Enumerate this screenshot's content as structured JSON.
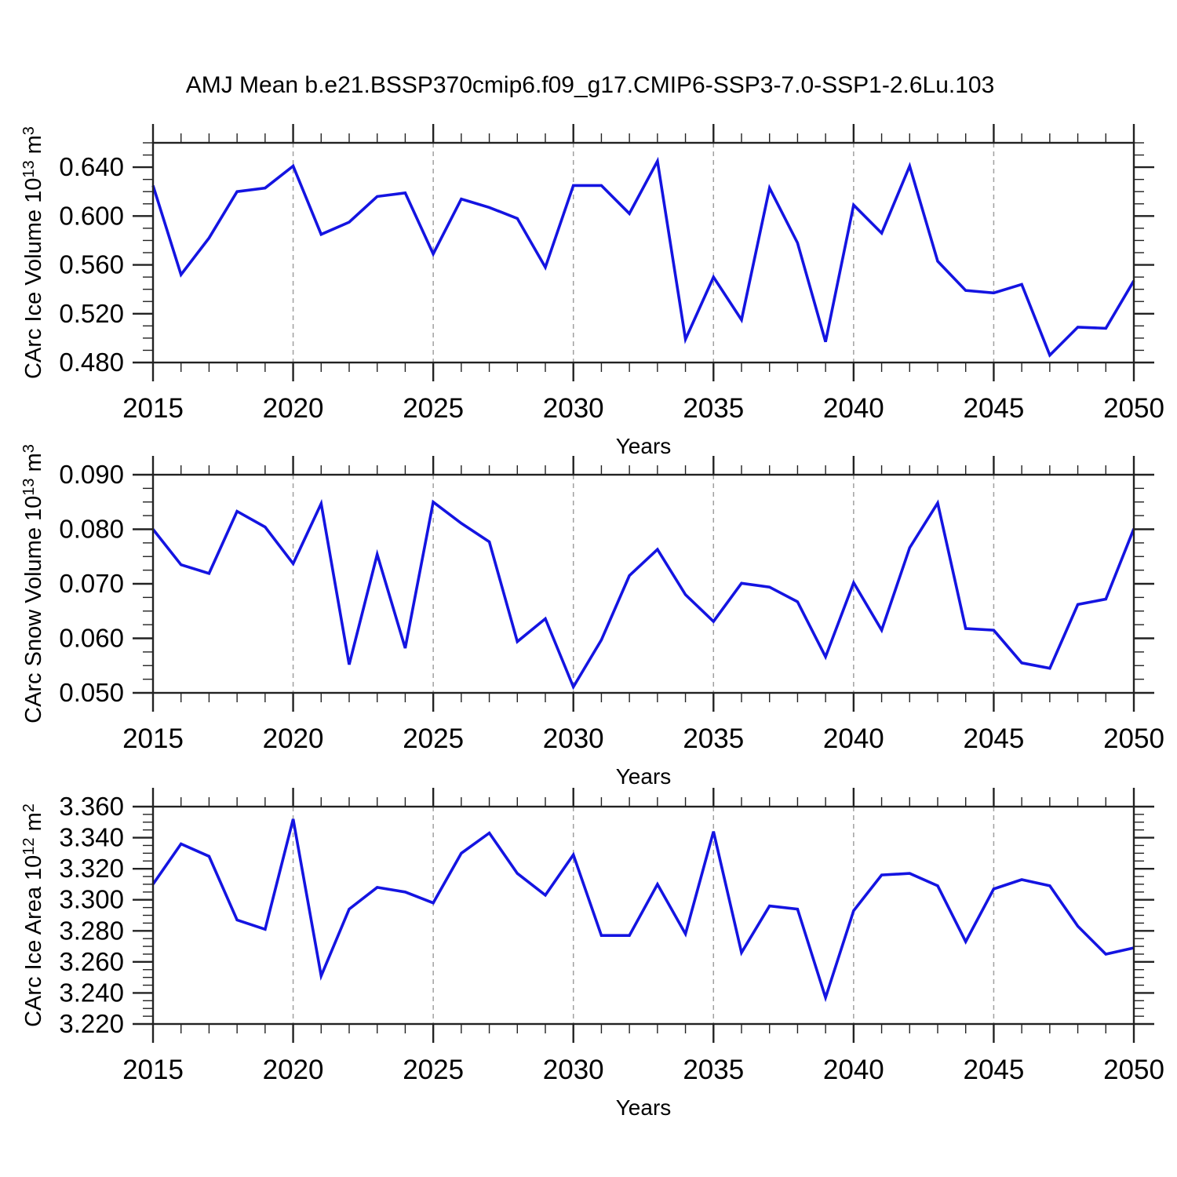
{
  "title": "AMJ Mean b.e21.BSSP370cmip6.f09_g17.CMIP6-SSP3-7.0-SSP1-2.6Lu.103",
  "style": {
    "line_color": "#1414e1",
    "grid_color": "#a0a0a0",
    "axis_color": "#222222",
    "text_color": "#000000",
    "background": "#ffffff"
  },
  "x_axis": {
    "label": "Years",
    "min": 2015,
    "max": 2050,
    "major_tick_step": 5,
    "minor_tick_step": 1,
    "tick_labels": [
      "2015",
      "2020",
      "2025",
      "2030",
      "2035",
      "2040",
      "2045",
      "2050"
    ],
    "grid_years": [
      2020,
      2025,
      2030,
      2035,
      2040,
      2045
    ]
  },
  "chart_data": [
    {
      "type": "line",
      "title": "",
      "ylabel": "CArc Ice Volume 10^13 m^3",
      "ylabel_parts": {
        "text": "CArc Ice Volume 10",
        "exponent": "13",
        "unit": " m",
        "unit_exponent": "3"
      },
      "xlabel": "Years",
      "legend": "none",
      "grid": "vertical-dashed",
      "ylim": [
        0.48,
        0.66
      ],
      "y_minor_step": 0.01,
      "yticks": [
        0.48,
        0.52,
        0.56,
        0.6,
        0.64
      ],
      "ytick_labels": [
        "0.480",
        "0.520",
        "0.560",
        "0.600",
        "0.640"
      ],
      "x": [
        2015,
        2016,
        2017,
        2018,
        2019,
        2020,
        2021,
        2022,
        2023,
        2024,
        2025,
        2026,
        2027,
        2028,
        2029,
        2030,
        2031,
        2032,
        2033,
        2034,
        2035,
        2036,
        2037,
        2038,
        2039,
        2040,
        2041,
        2042,
        2043,
        2044,
        2045,
        2046,
        2047,
        2048,
        2049,
        2050
      ],
      "values": [
        0.625,
        0.552,
        0.582,
        0.62,
        0.623,
        0.641,
        0.585,
        0.595,
        0.616,
        0.619,
        0.569,
        0.614,
        0.607,
        0.598,
        0.558,
        0.625,
        0.625,
        0.602,
        0.645,
        0.499,
        0.55,
        0.515,
        0.623,
        0.578,
        0.497,
        0.609,
        0.586,
        0.641,
        0.563,
        0.539,
        0.537,
        0.544,
        0.486,
        0.509,
        0.508,
        0.547
      ]
    },
    {
      "type": "line",
      "title": "",
      "ylabel": "CArc Snow Volume 10^13 m^3",
      "ylabel_parts": {
        "text": "CArc Snow Volume 10",
        "exponent": "13",
        "unit": " m",
        "unit_exponent": "3"
      },
      "xlabel": "Years",
      "legend": "none",
      "grid": "vertical-dashed",
      "ylim": [
        0.05,
        0.09
      ],
      "y_minor_step": 0.0025,
      "yticks": [
        0.05,
        0.06,
        0.07,
        0.08,
        0.09
      ],
      "ytick_labels": [
        "0.050",
        "0.060",
        "0.070",
        "0.080",
        "0.090"
      ],
      "x": [
        2015,
        2016,
        2017,
        2018,
        2019,
        2020,
        2021,
        2022,
        2023,
        2024,
        2025,
        2026,
        2027,
        2028,
        2029,
        2030,
        2031,
        2032,
        2033,
        2034,
        2035,
        2036,
        2037,
        2038,
        2039,
        2040,
        2041,
        2042,
        2043,
        2044,
        2045,
        2046,
        2047,
        2048,
        2049,
        2050
      ],
      "values": [
        0.08,
        0.0735,
        0.0719,
        0.0833,
        0.0804,
        0.0737,
        0.0847,
        0.0552,
        0.0754,
        0.0582,
        0.085,
        0.0811,
        0.0777,
        0.0594,
        0.0636,
        0.0511,
        0.0597,
        0.0715,
        0.0763,
        0.068,
        0.0631,
        0.0701,
        0.0694,
        0.0667,
        0.0566,
        0.0702,
        0.0615,
        0.0766,
        0.0848,
        0.0618,
        0.0615,
        0.0555,
        0.0545,
        0.0662,
        0.0672,
        0.0801
      ]
    },
    {
      "type": "line",
      "title": "",
      "ylabel": "CArc Ice Area 10^12 m^2",
      "ylabel_parts": {
        "text": "CArc Ice Area 10",
        "exponent": "12",
        "unit": " m",
        "unit_exponent": "2"
      },
      "xlabel": "Years",
      "legend": "none",
      "grid": "vertical-dashed",
      "ylim": [
        3.22,
        3.36
      ],
      "y_minor_step": 0.005,
      "yticks": [
        3.22,
        3.24,
        3.26,
        3.28,
        3.3,
        3.32,
        3.34,
        3.36
      ],
      "ytick_labels": [
        "3.220",
        "3.240",
        "3.260",
        "3.280",
        "3.300",
        "3.320",
        "3.340",
        "3.360"
      ],
      "x": [
        2015,
        2016,
        2017,
        2018,
        2019,
        2020,
        2021,
        2022,
        2023,
        2024,
        2025,
        2026,
        2027,
        2028,
        2029,
        2030,
        2031,
        2032,
        2033,
        2034,
        2035,
        2036,
        2037,
        2038,
        2039,
        2040,
        2041,
        2042,
        2043,
        2044,
        2045,
        2046,
        2047,
        2048,
        2049,
        2050
      ],
      "values": [
        3.31,
        3.336,
        3.328,
        3.287,
        3.281,
        3.352,
        3.251,
        3.294,
        3.308,
        3.305,
        3.298,
        3.33,
        3.343,
        3.317,
        3.303,
        3.329,
        3.277,
        3.277,
        3.31,
        3.278,
        3.344,
        3.266,
        3.296,
        3.294,
        3.237,
        3.293,
        3.316,
        3.317,
        3.309,
        3.273,
        3.307,
        3.313,
        3.309,
        3.283,
        3.265,
        3.269
      ]
    }
  ]
}
